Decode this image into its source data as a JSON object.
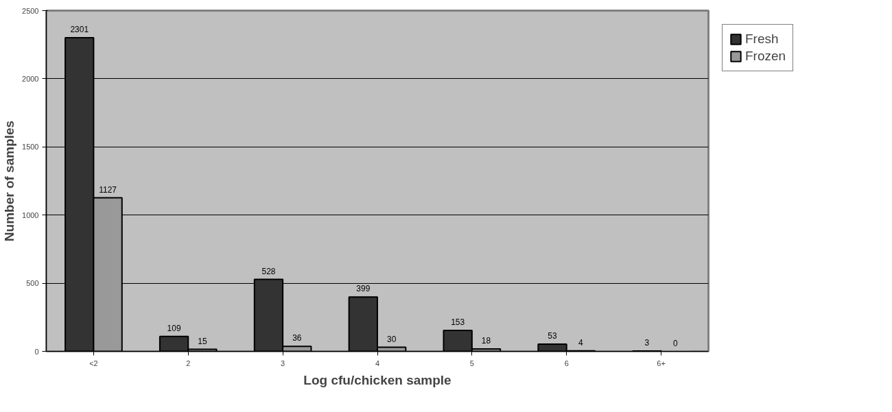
{
  "chart_data": {
    "type": "bar",
    "xlabel": "Log cfu/chicken sample",
    "ylabel": "Number of samples",
    "categories": [
      "<2",
      "2",
      "3",
      "4",
      "5",
      "6",
      "6+"
    ],
    "series": [
      {
        "name": "Fresh",
        "color": "#333333",
        "values": [
          2301,
          109,
          528,
          399,
          153,
          53,
          3
        ]
      },
      {
        "name": "Frozen",
        "color": "#999999",
        "values": [
          1127,
          15,
          36,
          30,
          18,
          4,
          0
        ]
      }
    ],
    "ylim": [
      0,
      2500
    ],
    "yticks": [
      0,
      500,
      1000,
      1500,
      2000,
      2500
    ],
    "grid": "y",
    "legend": "right",
    "data_labels": true
  }
}
